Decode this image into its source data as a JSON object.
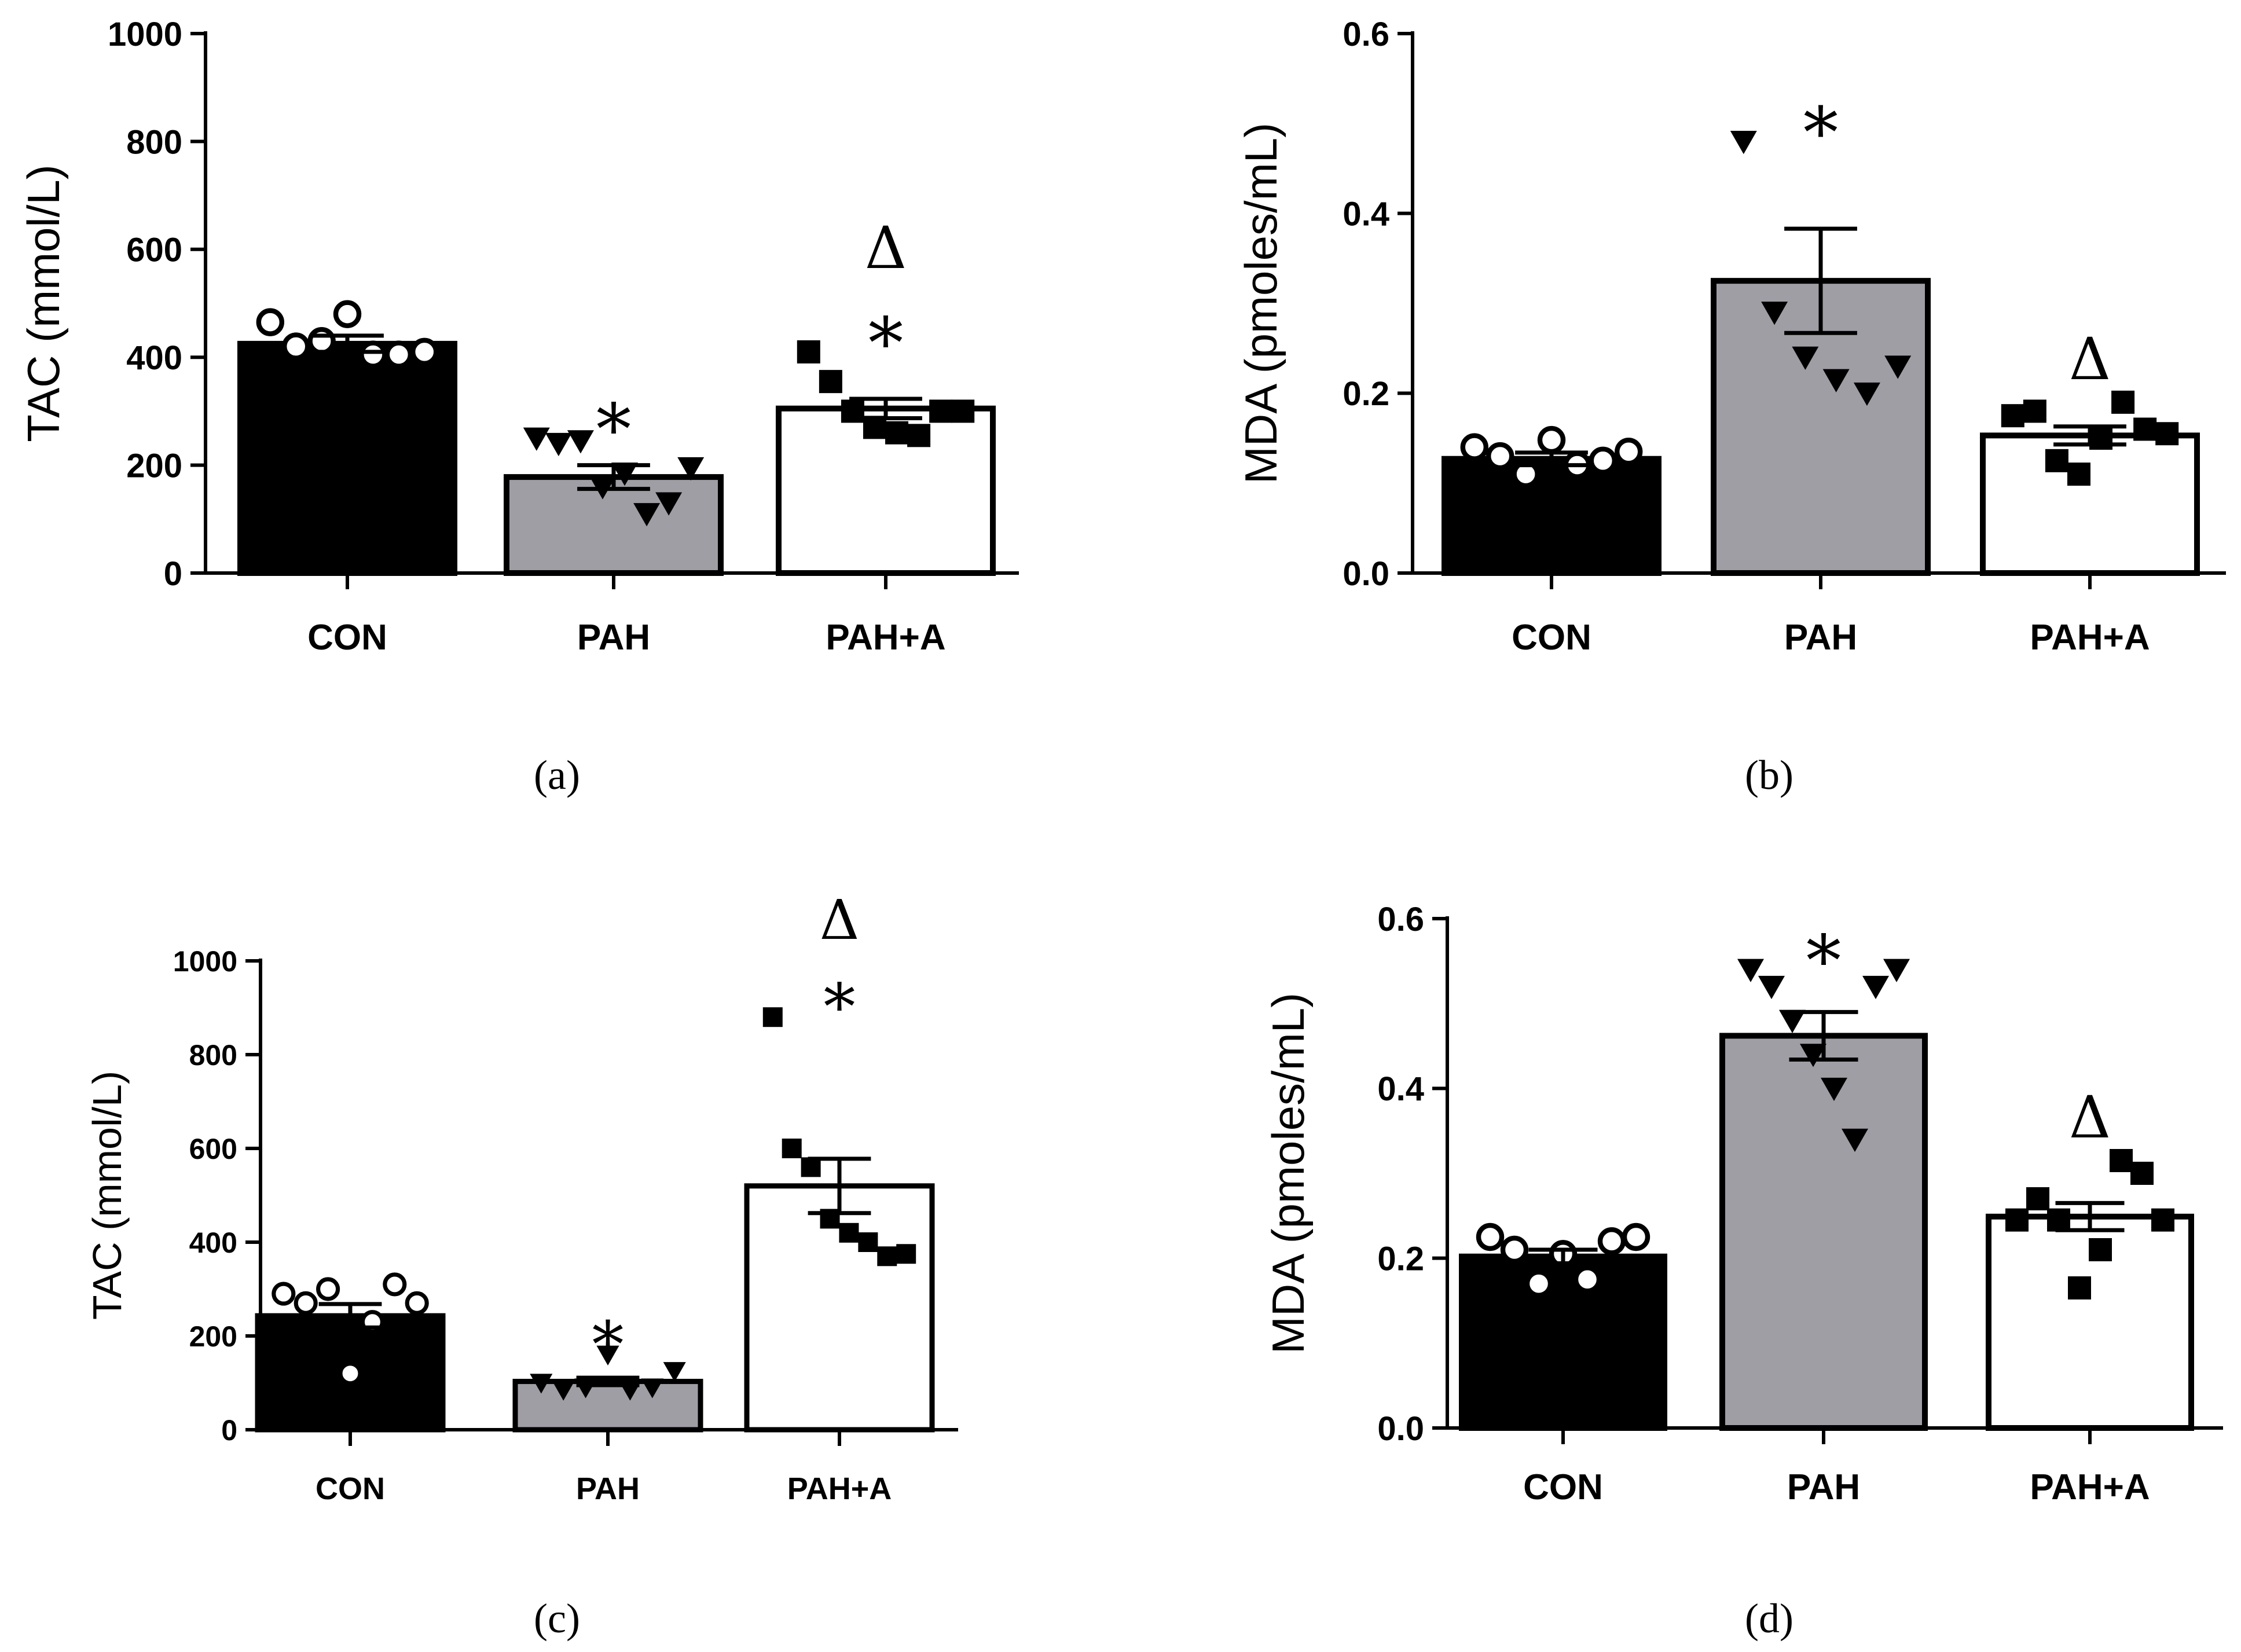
{
  "figure": {
    "colors": {
      "black": "#000000",
      "gray": "#a09ea5",
      "white": "#ffffff"
    }
  },
  "chart_data": [
    {
      "panel_label": "(a)",
      "type": "bar",
      "ylabel": "TAC (mmol/L)",
      "ylim": [
        0,
        1000
      ],
      "yticks": [
        0,
        200,
        400,
        600,
        800,
        1000
      ],
      "categories": [
        "CON",
        "PAH",
        "PAH+A"
      ],
      "means": [
        425,
        178,
        305
      ],
      "sem": [
        15,
        22,
        18
      ],
      "fills": [
        "#000000",
        "#a09ea5",
        "#ffffff"
      ],
      "marker": [
        "circle",
        "triangle-down",
        "square"
      ],
      "points": [
        [
          465,
          420,
          430,
          480,
          405,
          405,
          410
        ],
        [
          250,
          240,
          245,
          160,
          185,
          110,
          130,
          195
        ],
        [
          410,
          355,
          300,
          270,
          260,
          255,
          300,
          300
        ]
      ],
      "annotations": [
        [],
        [
          "*"
        ],
        [
          "*",
          "Δ"
        ]
      ]
    },
    {
      "panel_label": "(b)",
      "type": "bar",
      "ylabel": "MDA (pmoles/mL)",
      "ylim": [
        0,
        0.6
      ],
      "yticks": [
        "0.0",
        "0.2",
        "0.4",
        "0.6"
      ],
      "categories": [
        "CON",
        "PAH",
        "PAH+A"
      ],
      "means": [
        0.127,
        0.325,
        0.153
      ],
      "sem": [
        0.007,
        0.058,
        0.01
      ],
      "fills": [
        "#000000",
        "#a09ea5",
        "#ffffff"
      ],
      "marker": [
        "circle",
        "triangle-down",
        "square"
      ],
      "points": [
        [
          0.14,
          0.13,
          0.11,
          0.148,
          0.12,
          0.125,
          0.135
        ],
        [
          0.48,
          0.29,
          0.24,
          0.215,
          0.2,
          0.23
        ],
        [
          0.175,
          0.18,
          0.125,
          0.11,
          0.15,
          0.19,
          0.16,
          0.155
        ]
      ],
      "annotations": [
        [],
        [
          "*"
        ],
        [
          "Δ"
        ]
      ]
    },
    {
      "panel_label": "(c)",
      "type": "bar",
      "ylabel": "TAC (mmol/L)",
      "ylim": [
        0,
        1000
      ],
      "yticks": [
        0,
        200,
        400,
        600,
        800,
        1000
      ],
      "categories": [
        "CON",
        "PAH",
        "PAH+A"
      ],
      "means": [
        243,
        103,
        520
      ],
      "sem": [
        25,
        8,
        58
      ],
      "fills": [
        "#000000",
        "#a09ea5",
        "#ffffff"
      ],
      "marker": [
        "circle",
        "triangle-down",
        "square"
      ],
      "points": [
        [
          290,
          270,
          300,
          120,
          230,
          310,
          270
        ],
        [
          100,
          85,
          90,
          160,
          85,
          90,
          125
        ],
        [
          880,
          600,
          560,
          450,
          420,
          400,
          370,
          375
        ]
      ],
      "annotations": [
        [],
        [
          "*"
        ],
        [
          "*",
          "Δ"
        ]
      ]
    },
    {
      "panel_label": "(d)",
      "type": "bar",
      "ylabel": "MDA (pmoles/mL)",
      "ylim": [
        0,
        0.6
      ],
      "yticks": [
        "0.0",
        "0.2",
        "0.4",
        "0.6"
      ],
      "categories": [
        "CON",
        "PAH",
        "PAH+A"
      ],
      "means": [
        0.202,
        0.462,
        0.249
      ],
      "sem": [
        0.008,
        0.028,
        0.016
      ],
      "fills": [
        "#000000",
        "#a09ea5",
        "#ffffff"
      ],
      "marker": [
        "circle",
        "triangle-down",
        "square"
      ],
      "points": [
        [
          0.225,
          0.21,
          0.17,
          0.205,
          0.175,
          0.22,
          0.225
        ],
        [
          0.54,
          0.52,
          0.48,
          0.44,
          0.4,
          0.34,
          0.52,
          0.54
        ],
        [
          0.245,
          0.27,
          0.245,
          0.165,
          0.21,
          0.315,
          0.3,
          0.245
        ]
      ],
      "annotations": [
        [],
        [
          "*"
        ],
        [
          "Δ"
        ]
      ]
    }
  ]
}
